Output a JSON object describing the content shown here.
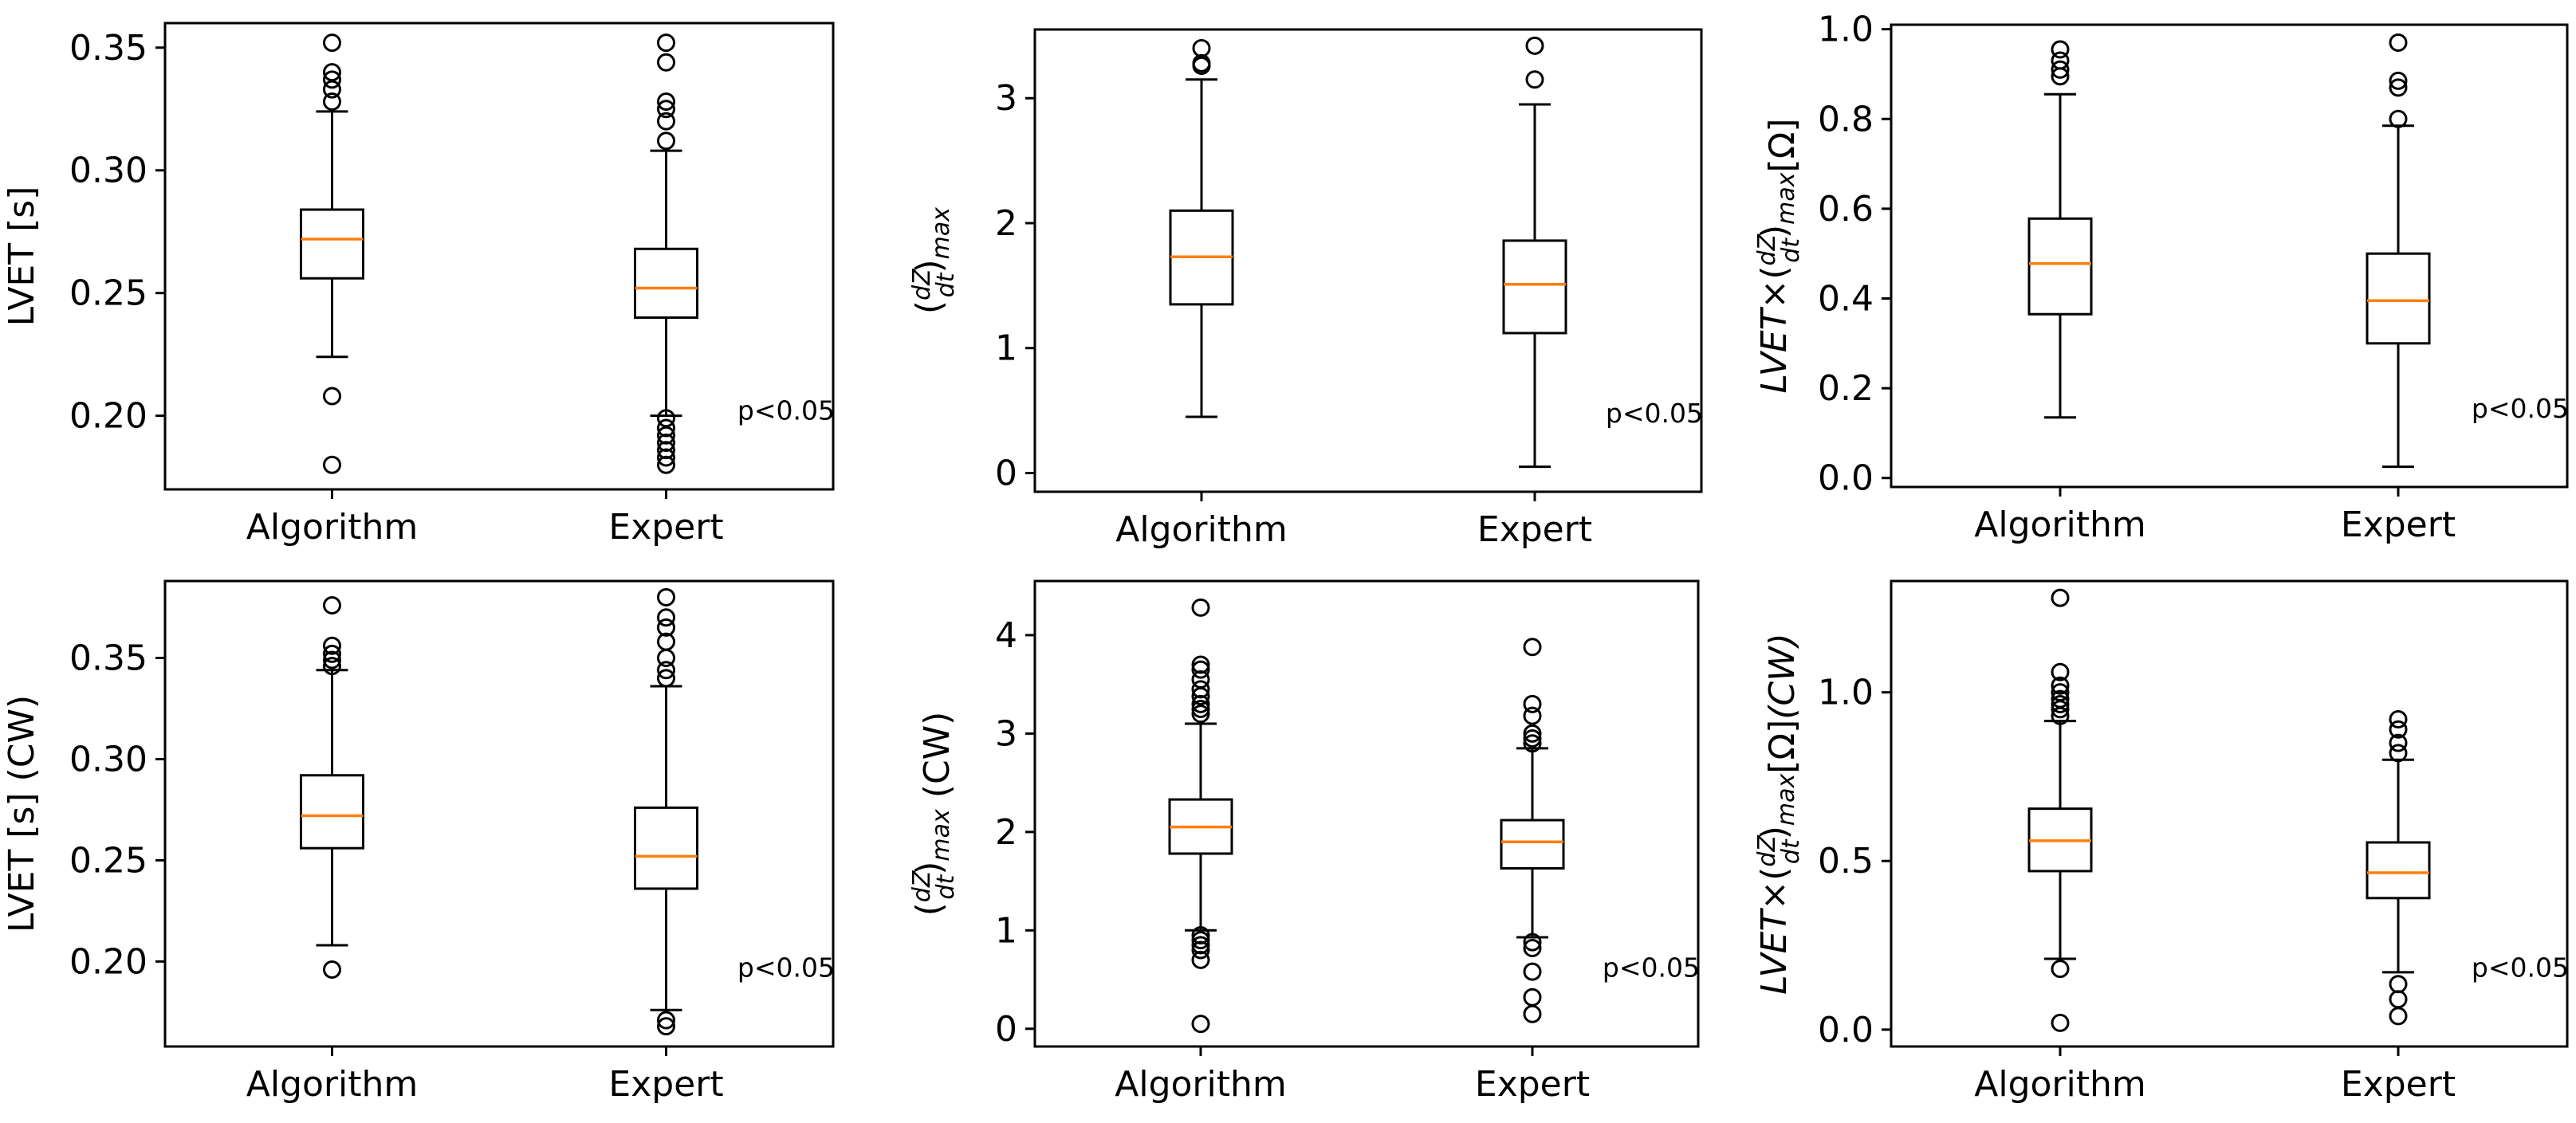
{
  "chart_data": [
    {
      "type": "boxplot",
      "panel": "top-left",
      "ylabel": "LVET [s]",
      "ylabel_parts": [
        {
          "t": "LVET [s]"
        }
      ],
      "categories": [
        "Algorithm",
        "Expert"
      ],
      "ylim": [
        0.17,
        0.36
      ],
      "yticks": [
        0.2,
        0.25,
        0.3,
        0.35
      ],
      "ytick_labels": [
        "0.20",
        "0.25",
        "0.30",
        "0.35"
      ],
      "annotation": "p<0.05",
      "boxes": [
        {
          "name": "Algorithm",
          "whislo": 0.224,
          "q1": 0.256,
          "med": 0.272,
          "q3": 0.284,
          "whishi": 0.324,
          "fliers": [
            0.18,
            0.208,
            0.328,
            0.333,
            0.337,
            0.34,
            0.352
          ]
        },
        {
          "name": "Expert",
          "whislo": 0.2,
          "q1": 0.24,
          "med": 0.252,
          "q3": 0.268,
          "whishi": 0.308,
          "fliers": [
            0.18,
            0.183,
            0.186,
            0.189,
            0.192,
            0.195,
            0.199,
            0.312,
            0.32,
            0.325,
            0.328,
            0.344,
            0.352
          ]
        }
      ]
    },
    {
      "type": "boxplot",
      "panel": "top-middle",
      "ylabel": "(dZ/dt)max",
      "ylabel_parts": [
        {
          "t": "("
        },
        {
          "t": "dZ",
          "frac": "top"
        },
        {
          "t": "dt",
          "frac": "bottom"
        },
        {
          "t": ")"
        },
        {
          "t": "max",
          "sub": true,
          "italic": true
        }
      ],
      "categories": [
        "Algorithm",
        "Expert"
      ],
      "ylim": [
        -0.15,
        3.55
      ],
      "yticks": [
        0,
        1,
        2,
        3
      ],
      "ytick_labels": [
        "0",
        "1",
        "2",
        "3"
      ],
      "annotation": "p<0.05",
      "boxes": [
        {
          "name": "Algorithm",
          "whislo": 0.45,
          "q1": 1.35,
          "med": 1.73,
          "q3": 2.1,
          "whishi": 3.15,
          "fliers": [
            3.26,
            3.28,
            3.4
          ]
        },
        {
          "name": "Expert",
          "whislo": 0.05,
          "q1": 1.12,
          "med": 1.51,
          "q3": 1.86,
          "whishi": 2.95,
          "fliers": [
            3.15,
            3.42
          ]
        }
      ]
    },
    {
      "type": "boxplot",
      "panel": "top-right",
      "ylabel": "LVET×(dZ/dt)max[Ω]",
      "ylabel_parts": [
        {
          "t": "LVET",
          "italic": true
        },
        {
          "t": "×"
        },
        {
          "t": "("
        },
        {
          "t": "dZ",
          "frac": "top"
        },
        {
          "t": "dt",
          "frac": "bottom"
        },
        {
          "t": ")"
        },
        {
          "t": "max",
          "sub": true,
          "italic": true
        },
        {
          "t": "[Ω]"
        }
      ],
      "categories": [
        "Algorithm",
        "Expert"
      ],
      "ylim": [
        -0.02,
        1.01
      ],
      "yticks": [
        0.0,
        0.2,
        0.4,
        0.6,
        0.8,
        1.0
      ],
      "ytick_labels": [
        "0.0",
        "0.2",
        "0.4",
        "0.6",
        "0.8",
        "1.0"
      ],
      "annotation": "p<0.05",
      "boxes": [
        {
          "name": "Algorithm",
          "whislo": 0.135,
          "q1": 0.365,
          "med": 0.478,
          "q3": 0.578,
          "whishi": 0.855,
          "fliers": [
            0.895,
            0.91,
            0.93,
            0.955
          ]
        },
        {
          "name": "Expert",
          "whislo": 0.025,
          "q1": 0.3,
          "med": 0.395,
          "q3": 0.5,
          "whishi": 0.785,
          "fliers": [
            0.8,
            0.87,
            0.885,
            0.97
          ]
        }
      ]
    },
    {
      "type": "boxplot",
      "panel": "bottom-left",
      "ylabel": "LVET [s] (CW)",
      "ylabel_parts": [
        {
          "t": "LVET [s] (CW)"
        }
      ],
      "categories": [
        "Algorithm",
        "Expert"
      ],
      "ylim": [
        0.158,
        0.388
      ],
      "yticks": [
        0.2,
        0.25,
        0.3,
        0.35
      ],
      "ytick_labels": [
        "0.20",
        "0.25",
        "0.30",
        "0.35"
      ],
      "annotation": "p<0.05",
      "boxes": [
        {
          "name": "Algorithm",
          "whislo": 0.208,
          "q1": 0.256,
          "med": 0.272,
          "q3": 0.292,
          "whishi": 0.344,
          "fliers": [
            0.196,
            0.346,
            0.349,
            0.352,
            0.356,
            0.376
          ]
        },
        {
          "name": "Expert",
          "whislo": 0.176,
          "q1": 0.236,
          "med": 0.252,
          "q3": 0.276,
          "whishi": 0.336,
          "fliers": [
            0.168,
            0.171,
            0.34,
            0.344,
            0.35,
            0.358,
            0.365,
            0.37,
            0.38
          ]
        }
      ]
    },
    {
      "type": "boxplot",
      "panel": "bottom-middle",
      "ylabel": "(dZ/dt)max (CW)",
      "ylabel_parts": [
        {
          "t": "("
        },
        {
          "t": "dZ",
          "frac": "top"
        },
        {
          "t": "dt",
          "frac": "bottom"
        },
        {
          "t": ")"
        },
        {
          "t": "max",
          "sub": true,
          "italic": true
        },
        {
          "t": " (CW)"
        }
      ],
      "categories": [
        "Algorithm",
        "Expert"
      ],
      "ylim": [
        -0.18,
        4.55
      ],
      "yticks": [
        0,
        1,
        2,
        3,
        4
      ],
      "ytick_labels": [
        "0",
        "1",
        "2",
        "3",
        "4"
      ],
      "annotation": "p<0.05",
      "boxes": [
        {
          "name": "Algorithm",
          "whislo": 1.0,
          "q1": 1.78,
          "med": 2.05,
          "q3": 2.33,
          "whishi": 3.1,
          "fliers": [
            0.05,
            0.7,
            0.8,
            0.85,
            0.9,
            0.95,
            3.2,
            3.25,
            3.3,
            3.38,
            3.45,
            3.55,
            3.65,
            3.7,
            4.28
          ]
        },
        {
          "name": "Expert",
          "whislo": 0.93,
          "q1": 1.63,
          "med": 1.9,
          "q3": 2.12,
          "whishi": 2.85,
          "fliers": [
            0.15,
            0.32,
            0.58,
            0.82,
            0.88,
            2.9,
            2.95,
            3.0,
            3.18,
            3.3,
            3.88
          ]
        }
      ]
    },
    {
      "type": "boxplot",
      "panel": "bottom-right",
      "ylabel": "LVET×(dZ/dt)max[Ω](CW)",
      "ylabel_parts": [
        {
          "t": "LVET",
          "italic": true
        },
        {
          "t": "×"
        },
        {
          "t": "("
        },
        {
          "t": "dZ",
          "frac": "top"
        },
        {
          "t": "dt",
          "frac": "bottom"
        },
        {
          "t": ")"
        },
        {
          "t": "max",
          "sub": true,
          "italic": true
        },
        {
          "t": "[Ω]"
        },
        {
          "t": "(CW)",
          "italic": true
        }
      ],
      "categories": [
        "Algorithm",
        "Expert"
      ],
      "ylim": [
        -0.05,
        1.33
      ],
      "yticks": [
        0.0,
        0.5,
        1.0
      ],
      "ytick_labels": [
        "0.0",
        "0.5",
        "1.0"
      ],
      "annotation": "p<0.05",
      "boxes": [
        {
          "name": "Algorithm",
          "whislo": 0.21,
          "q1": 0.47,
          "med": 0.56,
          "q3": 0.655,
          "whishi": 0.915,
          "fliers": [
            0.02,
            0.18,
            0.93,
            0.95,
            0.965,
            0.98,
            1.0,
            1.02,
            1.06,
            1.28
          ]
        },
        {
          "name": "Expert",
          "whislo": 0.17,
          "q1": 0.39,
          "med": 0.465,
          "q3": 0.555,
          "whishi": 0.8,
          "fliers": [
            0.04,
            0.09,
            0.135,
            0.82,
            0.85,
            0.89,
            0.92
          ]
        }
      ]
    }
  ]
}
